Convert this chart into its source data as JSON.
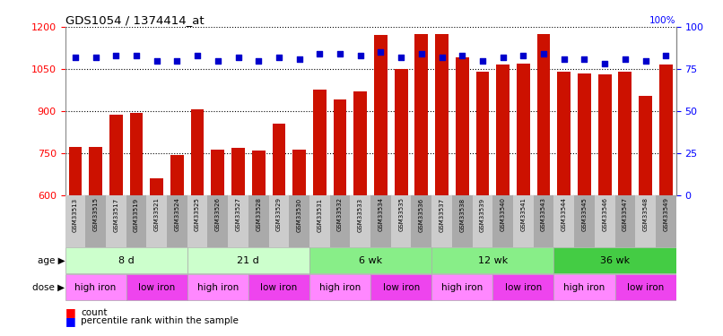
{
  "title": "GDS1054 / 1374414_at",
  "samples": [
    "GSM33513",
    "GSM33515",
    "GSM33517",
    "GSM33519",
    "GSM33521",
    "GSM33524",
    "GSM33525",
    "GSM33526",
    "GSM33527",
    "GSM33528",
    "GSM33529",
    "GSM33530",
    "GSM33531",
    "GSM33532",
    "GSM33533",
    "GSM33534",
    "GSM33535",
    "GSM33536",
    "GSM33537",
    "GSM33538",
    "GSM33539",
    "GSM33540",
    "GSM33541",
    "GSM33543",
    "GSM33544",
    "GSM33545",
    "GSM33546",
    "GSM33547",
    "GSM33548",
    "GSM33549"
  ],
  "counts": [
    770,
    770,
    885,
    893,
    658,
    742,
    905,
    762,
    768,
    760,
    854,
    762,
    975,
    940,
    970,
    1170,
    1050,
    1175,
    1175,
    1090,
    1040,
    1065,
    1070,
    1175,
    1040,
    1035,
    1030,
    1040,
    955,
    1065
  ],
  "percentile": [
    82,
    82,
    83,
    83,
    80,
    80,
    83,
    80,
    82,
    80,
    82,
    81,
    84,
    84,
    83,
    85,
    82,
    84,
    82,
    83,
    80,
    82,
    83,
    84,
    81,
    81,
    78,
    81,
    80,
    83
  ],
  "age_groups": [
    {
      "label": "8 d",
      "start": 0,
      "end": 6,
      "color": "#ccffcc"
    },
    {
      "label": "21 d",
      "start": 6,
      "end": 12,
      "color": "#ccffcc"
    },
    {
      "label": "6 wk",
      "start": 12,
      "end": 18,
      "color": "#88ee88"
    },
    {
      "label": "12 wk",
      "start": 18,
      "end": 24,
      "color": "#88ee88"
    },
    {
      "label": "36 wk",
      "start": 24,
      "end": 30,
      "color": "#44cc44"
    }
  ],
  "dose_groups": [
    {
      "label": "high iron",
      "start": 0,
      "end": 3,
      "color": "#ff88ff"
    },
    {
      "label": "low iron",
      "start": 3,
      "end": 6,
      "color": "#ee44ee"
    },
    {
      "label": "high iron",
      "start": 6,
      "end": 9,
      "color": "#ff88ff"
    },
    {
      "label": "low iron",
      "start": 9,
      "end": 12,
      "color": "#ee44ee"
    },
    {
      "label": "high iron",
      "start": 12,
      "end": 15,
      "color": "#ff88ff"
    },
    {
      "label": "low iron",
      "start": 15,
      "end": 18,
      "color": "#ee44ee"
    },
    {
      "label": "high iron",
      "start": 18,
      "end": 21,
      "color": "#ff88ff"
    },
    {
      "label": "low iron",
      "start": 21,
      "end": 24,
      "color": "#ee44ee"
    },
    {
      "label": "high iron",
      "start": 24,
      "end": 27,
      "color": "#ff88ff"
    },
    {
      "label": "low iron",
      "start": 27,
      "end": 30,
      "color": "#ee44ee"
    }
  ],
  "ymin": 600,
  "ymax": 1200,
  "yticks_left": [
    600,
    750,
    900,
    1050,
    1200
  ],
  "pct_min": 0,
  "pct_max": 100,
  "yticks_right": [
    0,
    25,
    50,
    75,
    100
  ],
  "bar_color": "#cc1100",
  "dot_color": "#0000cc",
  "bar_width": 0.65,
  "dot_size": 16,
  "xtick_bg_color": "#cccccc",
  "xtick_alt_bg_color": "#aaaaaa"
}
